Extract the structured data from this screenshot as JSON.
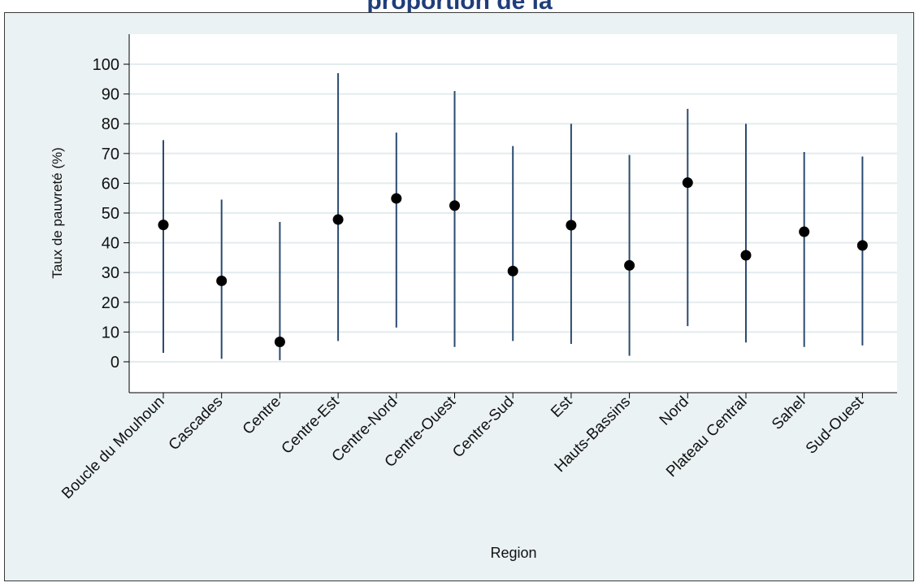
{
  "page": {
    "title_fragment": "proportion de la"
  },
  "chart_data": {
    "type": "scatter",
    "subtype": "dot-and-range",
    "xlabel": "Region",
    "ylabel": "Taux de pauvreté (%)",
    "ylim": [
      -10,
      105
    ],
    "yticks": [
      0,
      10,
      20,
      30,
      40,
      50,
      60,
      70,
      80,
      90,
      100
    ],
    "grid": true,
    "colors": {
      "point": "#000000",
      "range": "#2b4a6f",
      "grid": "#e3ecee",
      "axis": "#000000"
    },
    "categories": [
      "Boucle du Mouhoun",
      "Cascades",
      "Centre",
      "Centre-Est",
      "Centre-Nord",
      "Centre-Ouest",
      "Centre-Sud",
      "Est",
      "Hauts-Bassins",
      "Nord",
      "Plateau Central",
      "Sahel",
      "Sud-Ouest"
    ],
    "values": [
      46,
      27.2,
      6.7,
      47.8,
      54.9,
      52.5,
      30.5,
      45.9,
      32.4,
      60.2,
      35.8,
      43.7,
      39.1
    ],
    "lower": [
      3,
      1,
      0.5,
      7,
      11.5,
      5,
      7,
      6,
      2,
      12,
      6.5,
      5,
      5.5
    ],
    "upper": [
      74.5,
      54.5,
      47,
      97,
      77,
      91,
      72.5,
      80,
      69.5,
      85,
      80,
      70.5,
      69
    ]
  }
}
